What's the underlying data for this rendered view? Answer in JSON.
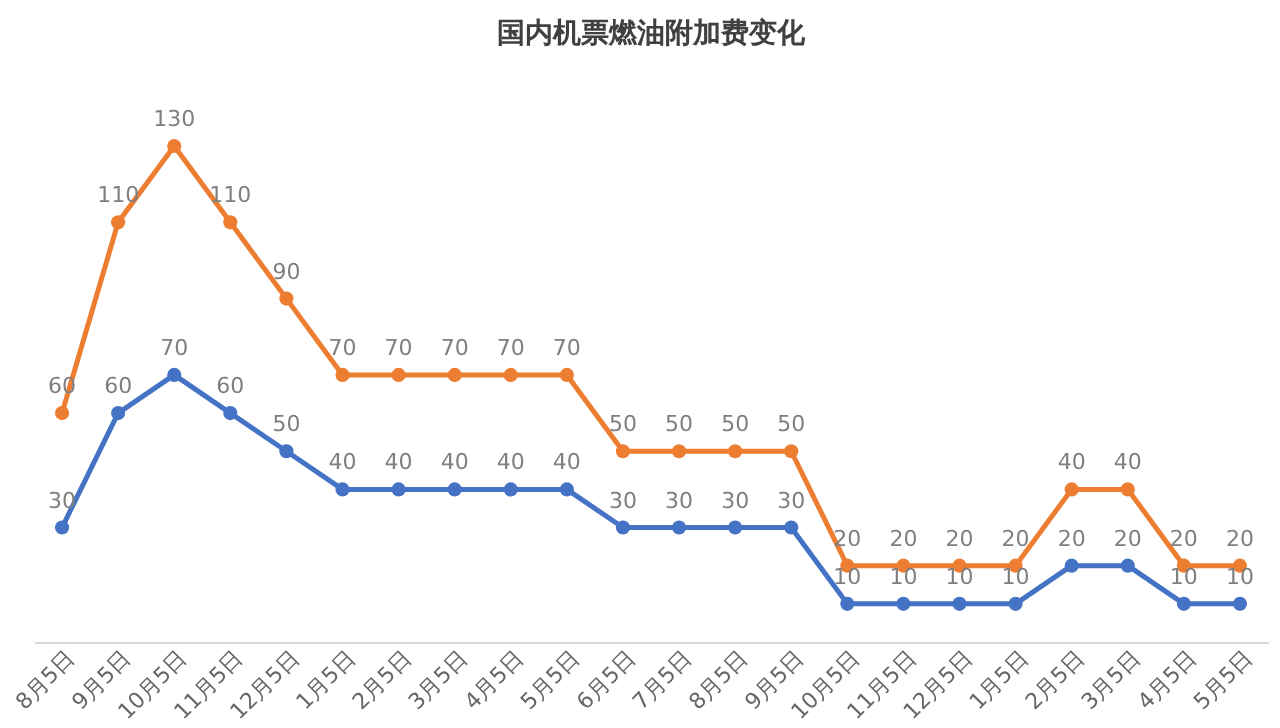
{
  "chart_data": {
    "type": "line",
    "title": "国内机票燃油附加费变化",
    "categories": [
      "8月5日",
      "9月5日",
      "10月5日",
      "11月5日",
      "12月5日",
      "1月5日",
      "2月5日",
      "3月5日",
      "4月5日",
      "5月5日",
      "6月5日",
      "7月5日",
      "8月5日",
      "9月5日",
      "10月5日",
      "11月5日",
      "12月5日",
      "1月5日",
      "2月5日",
      "3月5日",
      "4月5日",
      "5月5日"
    ],
    "series": [
      {
        "color": "#ed7d31",
        "values": [
          60,
          110,
          130,
          110,
          90,
          70,
          70,
          70,
          70,
          70,
          50,
          50,
          50,
          50,
          20,
          20,
          20,
          20,
          40,
          40,
          20,
          20
        ]
      },
      {
        "color": "#4472c4",
        "values": [
          30,
          60,
          70,
          60,
          50,
          40,
          40,
          40,
          40,
          40,
          30,
          30,
          30,
          30,
          10,
          10,
          10,
          10,
          20,
          20,
          10,
          10
        ]
      }
    ],
    "data_labels": true,
    "marker": "circle"
  }
}
